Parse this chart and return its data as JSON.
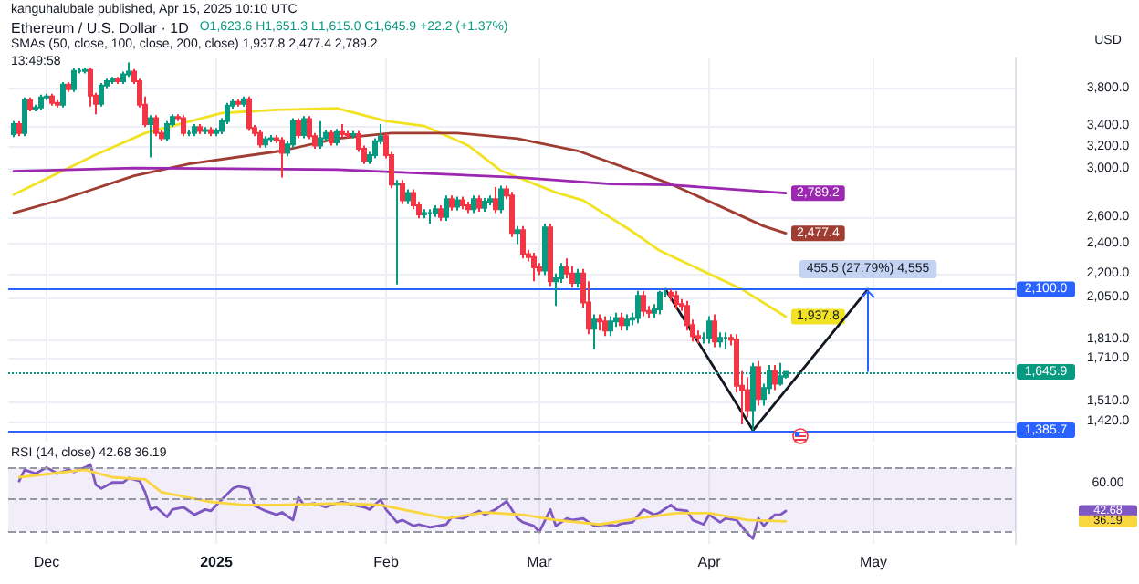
{
  "chart_data": [
    {
      "type": "candlestick",
      "title": "Ethereum / U.S. Dollar · 1D",
      "subtitle": "O1,623.6 H1,651.3 L1,615.0 C1,645.9 +22.2 (+1.37%)",
      "ylabel": "USD",
      "x": [
        "2024-11-25",
        "2024-11-26",
        "2024-11-27",
        "2024-11-28",
        "2024-11-29",
        "2024-11-30",
        "2024-12-01",
        "2024-12-02",
        "2024-12-03",
        "2024-12-04",
        "2024-12-05",
        "2024-12-06",
        "2024-12-07",
        "2024-12-08",
        "2024-12-09",
        "2024-12-10",
        "2024-12-11",
        "2024-12-12",
        "2024-12-13",
        "2024-12-14",
        "2024-12-15",
        "2024-12-16",
        "2024-12-17",
        "2024-12-18",
        "2024-12-19",
        "2024-12-20",
        "2024-12-21",
        "2024-12-22",
        "2024-12-23",
        "2024-12-24",
        "2024-12-25",
        "2024-12-26",
        "2024-12-27",
        "2024-12-28",
        "2024-12-29",
        "2024-12-30",
        "2024-12-31",
        "2025-01-01",
        "2025-01-02",
        "2025-01-03",
        "2025-01-04",
        "2025-01-05",
        "2025-01-06",
        "2025-01-07",
        "2025-01-08",
        "2025-01-09",
        "2025-01-10",
        "2025-01-11",
        "2025-01-12",
        "2025-01-13",
        "2025-01-14",
        "2025-01-15",
        "2025-01-16",
        "2025-01-17",
        "2025-01-18",
        "2025-01-19",
        "2025-01-20",
        "2025-01-21",
        "2025-01-22",
        "2025-01-23",
        "2025-01-24",
        "2025-01-25",
        "2025-01-26",
        "2025-01-27",
        "2025-01-28",
        "2025-01-29",
        "2025-01-30",
        "2025-01-31",
        "2025-02-01",
        "2025-02-02",
        "2025-02-03",
        "2025-02-04",
        "2025-02-05",
        "2025-02-06",
        "2025-02-07",
        "2025-02-08",
        "2025-02-09",
        "2025-02-10",
        "2025-02-11",
        "2025-02-12",
        "2025-02-13",
        "2025-02-14",
        "2025-02-15",
        "2025-02-16",
        "2025-02-17",
        "2025-02-18",
        "2025-02-19",
        "2025-02-20",
        "2025-02-21",
        "2025-02-22",
        "2025-02-23",
        "2025-02-24",
        "2025-02-25",
        "2025-02-26",
        "2025-02-27",
        "2025-02-28",
        "2025-03-01",
        "2025-03-02",
        "2025-03-03",
        "2025-03-04",
        "2025-03-05",
        "2025-03-06",
        "2025-03-07",
        "2025-03-08",
        "2025-03-09",
        "2025-03-10",
        "2025-03-11",
        "2025-03-12",
        "2025-03-13",
        "2025-03-14",
        "2025-03-15",
        "2025-03-16",
        "2025-03-17",
        "2025-03-18",
        "2025-03-19",
        "2025-03-20",
        "2025-03-21",
        "2025-03-22",
        "2025-03-23",
        "2025-03-24",
        "2025-03-25",
        "2025-03-26",
        "2025-03-27",
        "2025-03-28",
        "2025-03-29",
        "2025-03-30",
        "2025-03-31",
        "2025-04-01",
        "2025-04-02",
        "2025-04-03",
        "2025-04-04",
        "2025-04-05",
        "2025-04-06",
        "2025-04-07",
        "2025-04-08",
        "2025-04-09",
        "2025-04-10",
        "2025-04-11",
        "2025-04-12",
        "2025-04-13",
        "2025-04-14",
        "2025-04-15"
      ],
      "ohlc": [
        [
          3320,
          3450,
          3290,
          3420
        ],
        [
          3420,
          3450,
          3300,
          3330
        ],
        [
          3330,
          3700,
          3300,
          3670
        ],
        [
          3670,
          3700,
          3550,
          3580
        ],
        [
          3580,
          3620,
          3550,
          3590
        ],
        [
          3590,
          3730,
          3560,
          3700
        ],
        [
          3700,
          3740,
          3670,
          3710
        ],
        [
          3710,
          3740,
          3610,
          3640
        ],
        [
          3640,
          3670,
          3590,
          3620
        ],
        [
          3620,
          3870,
          3590,
          3840
        ],
        [
          3840,
          3870,
          3760,
          3790
        ],
        [
          3790,
          4030,
          3760,
          4000
        ],
        [
          4000,
          4030,
          3970,
          4000
        ],
        [
          4000,
          4040,
          3970,
          4010
        ],
        [
          4010,
          4040,
          3600,
          3720
        ],
        [
          3720,
          3750,
          3520,
          3630
        ],
        [
          3630,
          3860,
          3600,
          3830
        ],
        [
          3830,
          3910,
          3800,
          3880
        ],
        [
          3880,
          3930,
          3850,
          3900
        ],
        [
          3900,
          3930,
          3850,
          3880
        ],
        [
          3880,
          3990,
          3850,
          3960
        ],
        [
          3960,
          4100,
          3930,
          3990
        ],
        [
          3990,
          4020,
          3850,
          3880
        ],
        [
          3880,
          3910,
          3590,
          3620
        ],
        [
          3620,
          3710,
          3390,
          3420
        ],
        [
          3420,
          3510,
          3100,
          3480
        ],
        [
          3480,
          3510,
          3300,
          3330
        ],
        [
          3330,
          3360,
          3250,
          3280
        ],
        [
          3280,
          3450,
          3250,
          3420
        ],
        [
          3420,
          3520,
          3390,
          3490
        ],
        [
          3490,
          3520,
          3450,
          3480
        ],
        [
          3480,
          3510,
          3300,
          3330
        ],
        [
          3330,
          3360,
          3300,
          3330
        ],
        [
          3330,
          3420,
          3300,
          3390
        ],
        [
          3390,
          3420,
          3320,
          3350
        ],
        [
          3350,
          3390,
          3320,
          3360
        ],
        [
          3360,
          3390,
          3300,
          3330
        ],
        [
          3330,
          3380,
          3300,
          3350
        ],
        [
          3350,
          3480,
          3320,
          3450
        ],
        [
          3450,
          3640,
          3420,
          3610
        ],
        [
          3610,
          3680,
          3580,
          3650
        ],
        [
          3650,
          3680,
          3600,
          3630
        ],
        [
          3630,
          3710,
          3600,
          3680
        ],
        [
          3680,
          3710,
          3350,
          3380
        ],
        [
          3380,
          3410,
          3300,
          3330
        ],
        [
          3330,
          3360,
          3190,
          3220
        ],
        [
          3220,
          3300,
          3190,
          3270
        ],
        [
          3270,
          3310,
          3240,
          3280
        ],
        [
          3280,
          3310,
          3230,
          3260
        ],
        [
          3260,
          3290,
          2920,
          3140
        ],
        [
          3140,
          3250,
          3110,
          3220
        ],
        [
          3220,
          3480,
          3190,
          3450
        ],
        [
          3450,
          3480,
          3280,
          3310
        ],
        [
          3310,
          3500,
          3280,
          3470
        ],
        [
          3470,
          3500,
          3270,
          3300
        ],
        [
          3300,
          3330,
          3180,
          3210
        ],
        [
          3210,
          3450,
          3180,
          3280
        ],
        [
          3280,
          3360,
          3250,
          3330
        ],
        [
          3330,
          3360,
          3210,
          3240
        ],
        [
          3240,
          3370,
          3210,
          3340
        ],
        [
          3340,
          3420,
          3290,
          3320
        ],
        [
          3320,
          3350,
          3280,
          3310
        ],
        [
          3310,
          3350,
          3280,
          3320
        ],
        [
          3320,
          3350,
          3150,
          3180
        ],
        [
          3180,
          3210,
          3040,
          3070
        ],
        [
          3070,
          3150,
          3040,
          3120
        ],
        [
          3120,
          3280,
          3090,
          3250
        ],
        [
          3250,
          3420,
          3220,
          3300
        ],
        [
          3300,
          3330,
          3090,
          3120
        ],
        [
          3120,
          3150,
          2830,
          2860
        ],
        [
          2860,
          2900,
          2130,
          2870
        ],
        [
          2870,
          2900,
          2700,
          2730
        ],
        [
          2730,
          2820,
          2700,
          2790
        ],
        [
          2790,
          2820,
          2660,
          2690
        ],
        [
          2690,
          2720,
          2590,
          2620
        ],
        [
          2620,
          2660,
          2590,
          2630
        ],
        [
          2630,
          2660,
          2550,
          2630
        ],
        [
          2630,
          2690,
          2600,
          2660
        ],
        [
          2660,
          2690,
          2570,
          2600
        ],
        [
          2600,
          2770,
          2570,
          2740
        ],
        [
          2740,
          2770,
          2650,
          2680
        ],
        [
          2680,
          2760,
          2650,
          2730
        ],
        [
          2730,
          2760,
          2660,
          2690
        ],
        [
          2690,
          2720,
          2630,
          2660
        ],
        [
          2660,
          2770,
          2630,
          2740
        ],
        [
          2740,
          2770,
          2640,
          2670
        ],
        [
          2670,
          2750,
          2640,
          2720
        ],
        [
          2720,
          2770,
          2690,
          2740
        ],
        [
          2740,
          2840,
          2630,
          2660
        ],
        [
          2660,
          2850,
          2630,
          2820
        ],
        [
          2820,
          2850,
          2740,
          2770
        ],
        [
          2770,
          2800,
          2450,
          2480
        ],
        [
          2480,
          2530,
          2400,
          2500
        ],
        [
          2500,
          2530,
          2300,
          2330
        ],
        [
          2330,
          2360,
          2280,
          2310
        ],
        [
          2310,
          2340,
          2150,
          2240
        ],
        [
          2240,
          2270,
          2190,
          2220
        ],
        [
          2220,
          2550,
          2190,
          2520
        ],
        [
          2520,
          2550,
          2120,
          2150
        ],
        [
          2150,
          2200,
          2000,
          2170
        ],
        [
          2170,
          2270,
          2140,
          2240
        ],
        [
          2240,
          2300,
          2170,
          2200
        ],
        [
          2200,
          2250,
          2110,
          2140
        ],
        [
          2140,
          2230,
          2110,
          2200
        ],
        [
          2200,
          2230,
          1990,
          2020
        ],
        [
          2020,
          2150,
          1840,
          1870
        ],
        [
          1870,
          1950,
          1760,
          1920
        ],
        [
          1920,
          1950,
          1860,
          1910
        ],
        [
          1910,
          1940,
          1830,
          1860
        ],
        [
          1860,
          1940,
          1830,
          1910
        ],
        [
          1910,
          1960,
          1880,
          1930
        ],
        [
          1930,
          1960,
          1860,
          1890
        ],
        [
          1890,
          1950,
          1860,
          1920
        ],
        [
          1920,
          1960,
          1890,
          1930
        ],
        [
          1930,
          2090,
          1900,
          2060
        ],
        [
          2060,
          2090,
          1940,
          1970
        ],
        [
          1970,
          2000,
          1930,
          1960
        ],
        [
          1960,
          2010,
          1930,
          1980
        ],
        [
          1980,
          2090,
          1950,
          2080
        ],
        [
          2080,
          2100,
          2050,
          2080
        ],
        [
          2080,
          2100,
          2030,
          2060
        ],
        [
          2060,
          2090,
          1980,
          2010
        ],
        [
          2010,
          2040,
          1970,
          2000
        ],
        [
          2000,
          2030,
          1860,
          1890
        ],
        [
          1890,
          1920,
          1800,
          1830
        ],
        [
          1830,
          1860,
          1790,
          1820
        ],
        [
          1820,
          1850,
          1790,
          1820
        ],
        [
          1820,
          1940,
          1790,
          1910
        ],
        [
          1910,
          1950,
          1770,
          1800
        ],
        [
          1800,
          1850,
          1770,
          1820
        ],
        [
          1820,
          1850,
          1760,
          1820
        ],
        [
          1820,
          1840,
          1780,
          1810
        ],
        [
          1810,
          1840,
          1550,
          1580
        ],
        [
          1580,
          1650,
          1410,
          1560
        ],
        [
          1560,
          1620,
          1440,
          1470
        ],
        [
          1470,
          1690,
          1385.7,
          1670
        ],
        [
          1670,
          1700,
          1490,
          1520
        ],
        [
          1520,
          1590,
          1490,
          1570
        ],
        [
          1570,
          1680,
          1540,
          1650
        ],
        [
          1650,
          1680,
          1560,
          1590
        ],
        [
          1590,
          1690,
          1580,
          1625
        ],
        [
          1623.6,
          1651.3,
          1615.0,
          1645.9
        ]
      ],
      "series": [
        {
          "type": "line",
          "color": "#f2e224",
          "x": [
            "2024-11-25",
            "2024-12-10",
            "2024-12-19",
            "2025-01-02",
            "2025-01-12",
            "2025-01-23",
            "2025-02-01",
            "2025-02-08",
            "2025-02-16",
            "2025-02-22",
            "2025-03-04",
            "2025-03-09",
            "2025-03-18",
            "2025-03-23",
            "2025-04-07",
            "2025-04-15"
          ],
          "values": [
            2777,
            3124,
            3329,
            3532,
            3565,
            3583,
            3450,
            3400,
            3210,
            2980,
            2795,
            2730,
            2490,
            2353,
            2100,
            1937.8
          ]
        },
        {
          "type": "line",
          "color": "#a03d32",
          "x": [
            "2024-11-25",
            "2024-12-04",
            "2024-12-17",
            "2024-12-27",
            "2025-01-13",
            "2025-01-23",
            "2025-02-02",
            "2025-02-14",
            "2025-02-25",
            "2025-03-08",
            "2025-03-25",
            "2025-04-11",
            "2025-04-15"
          ],
          "values": [
            2630,
            2740,
            2935,
            3040,
            3160,
            3276,
            3330,
            3330,
            3276,
            3160,
            2865,
            2530,
            2477.4
          ]
        },
        {
          "type": "line",
          "color": "#9c27b0",
          "x": [
            "2024-11-25",
            "2024-12-17",
            "2025-01-23",
            "2025-02-25",
            "2025-03-14",
            "2025-03-25",
            "2025-04-15"
          ],
          "values": [
            2975,
            3004,
            2990,
            2922,
            2866,
            2857,
            2789.2
          ]
        },
        {
          "type": "line",
          "color": "#131722",
          "x": [
            "2025-03-24",
            "2025-04-09",
            "2025-04-30"
          ],
          "values": [
            2100,
            1385.7,
            2100
          ]
        }
      ],
      "xlim": [
        "2024-11-24",
        "2025-05-27"
      ],
      "xticks": [
        {
          "value": "2024-12-01",
          "label": null
        },
        {
          "value": "2025-01-01",
          "label": null
        },
        {
          "value": "2025-02-01",
          "label": null
        },
        {
          "value": "2025-03-01",
          "label": null
        },
        {
          "value": "2025-04-01",
          "label": null
        },
        {
          "value": "2025-05-01",
          "label": null
        }
      ],
      "ylim": [
        1340,
        4150
      ],
      "yticks": [
        {
          "value": 3800,
          "label": "3,800.0"
        },
        {
          "value": 3400,
          "label": "3,400.0"
        },
        {
          "value": 3200,
          "label": "3,200.0"
        },
        {
          "value": 3000,
          "label": "3,000.0"
        },
        {
          "value": 2600,
          "label": "2,600.0"
        },
        {
          "value": 2400,
          "label": "2,400.0"
        },
        {
          "value": 2200,
          "label": "2,200.0"
        },
        {
          "value": 2050,
          "label": "2,050.0"
        },
        {
          "value": 1810,
          "label": "1,810.0"
        },
        {
          "value": 1710,
          "label": "1,710.0"
        },
        {
          "value": 1510,
          "label": "1,510.0"
        },
        {
          "value": 1420,
          "label": "1,420.0"
        }
      ],
      "log": true,
      "grid": true,
      "tick_labels": "y",
      "marker": "none",
      "line_style": "solid",
      "ref_lines": [
        {
          "axis": "y",
          "value": 2100,
          "label": "2,100.0",
          "color": "#2962ff"
        },
        {
          "axis": "y",
          "value": 1385.7,
          "label": "1,385.7",
          "color": "#2962ff"
        },
        {
          "axis": "y",
          "value": 1645.9,
          "label": "1,645.9",
          "color": "#089981",
          "line_style": "dotted"
        }
      ],
      "annotations": [
        "kanguhalubale published, Apr 15, 2025 10:10 UTC",
        "SMAs (50, close, 100, close, 200, close) 1,937.8 2,477.4 2,789.2",
        "13:49:58",
        {
          "text": "2,789.2",
          "x": "2025-04-15",
          "y": 2789.2
        },
        {
          "text": "2,477.4",
          "x": "2025-04-15",
          "y": 2477.4
        },
        {
          "text": "1,937.8",
          "x": "2025-04-15",
          "y": 1937.8
        },
        {
          "text": "455.5 (27.79%) 4,555",
          "x": "2025-04-30",
          "y": 2100
        }
      ]
    },
    {
      "type": "line",
      "series": [
        {
          "color": "#7e57c2",
          "x": [
            "2024-11-26",
            "2024-11-27",
            "2024-11-29",
            "2024-12-01",
            "2024-12-03",
            "2024-12-05",
            "2024-12-06",
            "2024-12-08",
            "2024-12-09",
            "2024-12-10",
            "2024-12-11",
            "2024-12-13",
            "2024-12-15",
            "2024-12-16",
            "2024-12-18",
            "2024-12-19",
            "2024-12-20",
            "2024-12-21",
            "2024-12-23",
            "2024-12-24",
            "2024-12-26",
            "2024-12-28",
            "2024-12-30",
            "2024-12-31",
            "2025-01-02",
            "2025-01-04",
            "2025-01-05",
            "2025-01-07",
            "2025-01-08",
            "2025-01-10",
            "2025-01-12",
            "2025-01-13",
            "2025-01-15",
            "2025-01-16",
            "2025-01-17",
            "2025-01-19",
            "2025-01-21",
            "2025-01-22",
            "2025-01-24",
            "2025-01-26",
            "2025-01-28",
            "2025-01-29",
            "2025-01-31",
            "2025-02-01",
            "2025-02-03",
            "2025-02-04",
            "2025-02-06",
            "2025-02-07",
            "2025-02-09",
            "2025-02-12",
            "2025-02-13",
            "2025-02-15",
            "2025-02-18",
            "2025-02-19",
            "2025-02-21",
            "2025-02-23",
            "2025-02-25",
            "2025-02-26",
            "2025-02-28",
            "2025-03-01",
            "2025-03-03",
            "2025-03-04",
            "2025-03-06",
            "2025-03-07",
            "2025-03-09",
            "2025-03-11",
            "2025-03-13",
            "2025-03-15",
            "2025-03-16",
            "2025-03-18",
            "2025-03-20",
            "2025-03-22",
            "2025-03-23",
            "2025-03-25",
            "2025-03-26",
            "2025-03-28",
            "2025-03-29",
            "2025-03-31",
            "2025-04-01",
            "2025-04-03",
            "2025-04-04",
            "2025-04-06",
            "2025-04-08",
            "2025-04-09",
            "2025-04-10",
            "2025-04-11",
            "2025-04-12",
            "2025-04-13",
            "2025-04-14",
            "2025-04-15"
          ],
          "values": [
            61.5,
            68.6,
            66.2,
            70,
            66.2,
            68.6,
            67.2,
            70,
            71.9,
            59.2,
            56.8,
            60.6,
            60.6,
            63.4,
            61.5,
            54.5,
            43.6,
            45.1,
            38.9,
            43.6,
            45.1,
            40.3,
            43.6,
            42.7,
            49.8,
            56.8,
            58.2,
            56.8,
            46,
            42.7,
            40.3,
            41.8,
            37,
            51.2,
            46.5,
            47.4,
            45.1,
            46.5,
            48.4,
            46.5,
            45.1,
            43.6,
            49.8,
            43.6,
            35.6,
            37,
            33.3,
            34.2,
            32.4,
            34.2,
            38.9,
            38,
            42.7,
            40.3,
            43.6,
            48.8,
            38,
            35.6,
            33.3,
            29.5,
            43.6,
            33.3,
            38,
            37,
            38,
            33.3,
            34.2,
            33.3,
            34.7,
            35.6,
            43.6,
            40.3,
            41.8,
            46.5,
            43.6,
            42.7,
            37,
            34.2,
            40.3,
            35.6,
            38,
            37,
            28.6,
            25.3,
            38,
            33.3,
            37,
            40.3,
            40.3,
            42.68
          ]
        },
        {
          "color": "#f9d63f",
          "x": [
            "2024-11-26",
            "2024-12-02",
            "2024-12-08",
            "2024-12-13",
            "2024-12-19",
            "2024-12-22",
            "2024-12-31",
            "2025-01-06",
            "2025-01-12",
            "2025-01-24",
            "2025-01-31",
            "2025-02-12",
            "2025-02-19",
            "2025-02-26",
            "2025-03-04",
            "2025-03-12",
            "2025-03-19",
            "2025-03-26",
            "2025-04-01",
            "2025-04-08",
            "2025-04-15"
          ],
          "values": [
            63.9,
            66.2,
            68.6,
            63.9,
            62.5,
            54.5,
            48.4,
            46.5,
            46.5,
            47.4,
            46.5,
            38,
            41.8,
            40.3,
            37,
            34.2,
            38,
            41.3,
            41.3,
            37,
            36.19
          ]
        }
      ],
      "xlim": [
        "2024-11-24",
        "2025-05-27"
      ],
      "xticks": [
        {
          "value": "2024-12-01",
          "label": "Dec"
        },
        {
          "value": "2025-01-01",
          "label": "2025"
        },
        {
          "value": "2025-02-01",
          "label": "Feb"
        },
        {
          "value": "2025-03-01",
          "label": "Mar"
        },
        {
          "value": "2025-04-01",
          "label": "Apr"
        },
        {
          "value": "2025-05-01",
          "label": "May"
        }
      ],
      "ylim": [
        22,
        84
      ],
      "yticks": [
        {
          "value": 60,
          "label": "60.00"
        },
        {
          "value": 42.68,
          "label": "42.68"
        },
        {
          "value": 36.19,
          "label": "36.19"
        }
      ],
      "grid": "x",
      "marker": "none",
      "bands": [
        {
          "axis": "y",
          "from": 30,
          "to": 70,
          "color": "#7e57c2"
        }
      ],
      "ref_lines": [
        {
          "axis": "y",
          "value": 70,
          "color": "#9598a1",
          "line_style": "dashed"
        },
        {
          "axis": "y",
          "value": 50,
          "color": "#9598a1",
          "line_style": "dashed"
        },
        {
          "axis": "y",
          "value": 30,
          "color": "#9598a1",
          "line_style": "dashed"
        }
      ],
      "annotations": [
        "RSI (14, close) 42.68 36.19"
      ]
    }
  ]
}
